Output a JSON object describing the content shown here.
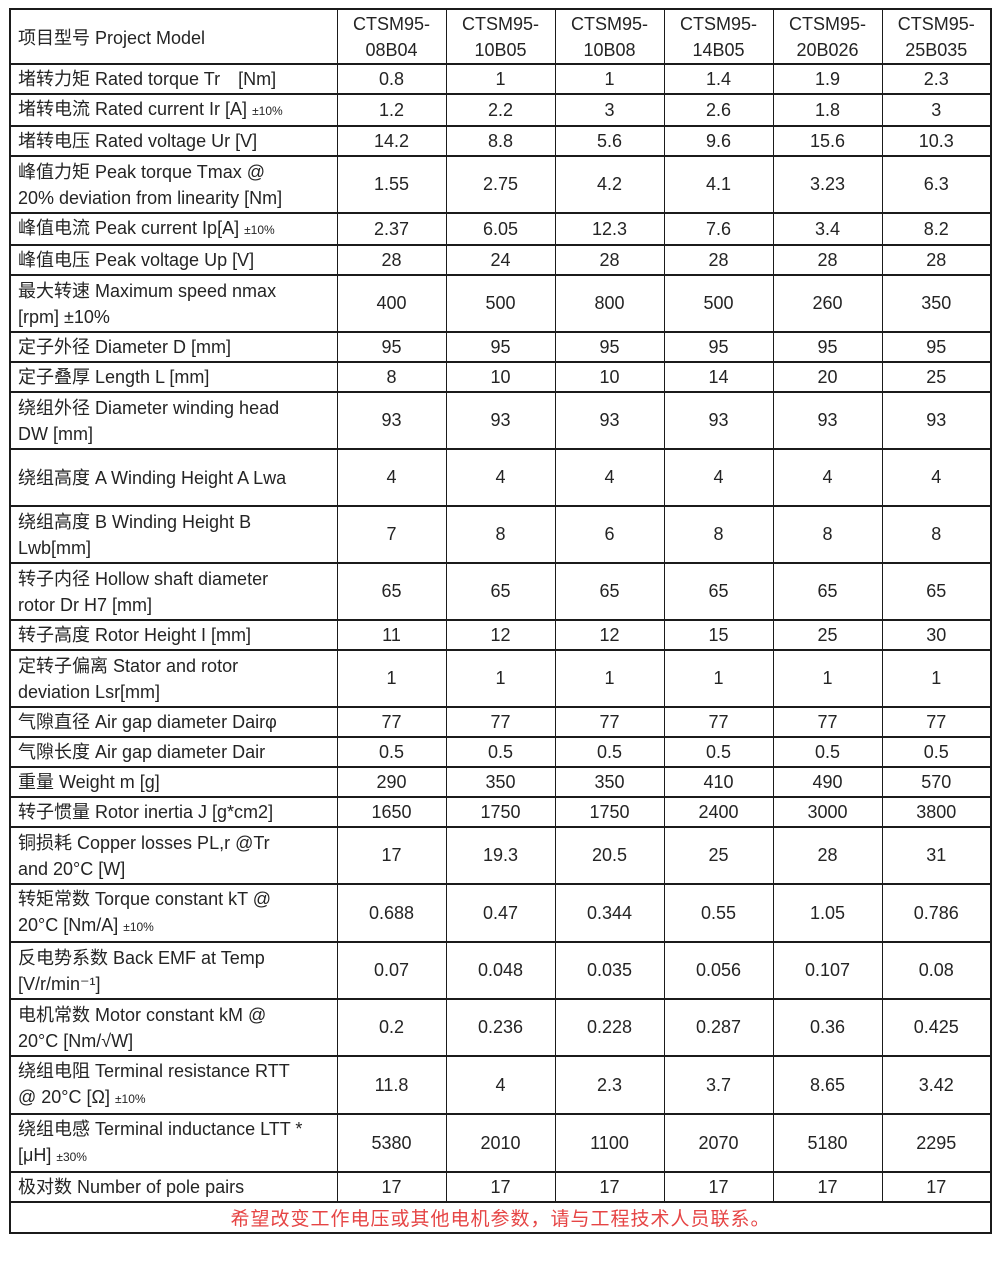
{
  "table": {
    "header": {
      "label": "项目型号 Project Model",
      "models": [
        "CTSM95-08B04",
        "CTSM95-10B05",
        "CTSM95-10B08",
        "CTSM95-14B05",
        "CTSM95-20B026",
        "CTSM95-25B035"
      ]
    },
    "rows": [
      {
        "label": "堵转力矩 Rated torque Tr　[Nm]",
        "note": "",
        "tall": false,
        "values": [
          "0.8",
          "1",
          "1",
          "1.4",
          "1.9",
          "2.3"
        ]
      },
      {
        "label": "堵转电流 Rated current Ir [A]",
        "note": "±10%",
        "tall": false,
        "values": [
          "1.2",
          "2.2",
          "3",
          "2.6",
          "1.8",
          "3"
        ]
      },
      {
        "label": "堵转电压 Rated voltage Ur [V]",
        "note": "",
        "tall": false,
        "values": [
          "14.2",
          "8.8",
          "5.6",
          "9.6",
          "15.6",
          "10.3"
        ]
      },
      {
        "label": "峰值力矩 Peak torque Tmax @ 20% deviation from linearity [Nm]",
        "note": "",
        "tall": true,
        "values": [
          "1.55",
          "2.75",
          "4.2",
          "4.1",
          "3.23",
          "6.3"
        ]
      },
      {
        "label": "峰值电流 Peak current Ip[A]",
        "note": "±10%",
        "tall": false,
        "values": [
          "2.37",
          "6.05",
          "12.3",
          "7.6",
          "3.4",
          "8.2"
        ]
      },
      {
        "label": "峰值电压 Peak voltage Up [V]",
        "note": "",
        "tall": false,
        "values": [
          "28",
          "24",
          "28",
          "28",
          "28",
          "28"
        ]
      },
      {
        "label": "最大转速  Maximum speed nmax [rpm] ±10%",
        "note": "",
        "tall": true,
        "values": [
          "400",
          "500",
          "800",
          "500",
          "260",
          "350"
        ]
      },
      {
        "label": "定子外径 Diameter D [mm]",
        "note": "",
        "tall": false,
        "values": [
          "95",
          "95",
          "95",
          "95",
          "95",
          "95"
        ]
      },
      {
        "label": "定子叠厚 Length L [mm]",
        "note": "",
        "tall": false,
        "values": [
          "8",
          "10",
          "10",
          "14",
          "20",
          "25"
        ]
      },
      {
        "label": "绕组外径 Diameter winding head DW [mm]",
        "note": "",
        "tall": true,
        "values": [
          "93",
          "93",
          "93",
          "93",
          "93",
          "93"
        ]
      },
      {
        "label": "绕组高度 A Winding Height A Lwa",
        "note": "",
        "tall": true,
        "values": [
          "4",
          "4",
          "4",
          "4",
          "4",
          "4"
        ]
      },
      {
        "label": "绕组高度 B Winding Height B Lwb[mm]",
        "note": "",
        "tall": true,
        "values": [
          "7",
          "8",
          "6",
          "8",
          "8",
          "8"
        ]
      },
      {
        "label": "转子内径 Hollow shaft diameter rotor Dr H7 [mm]",
        "note": "",
        "tall": true,
        "values": [
          "65",
          "65",
          "65",
          "65",
          "65",
          "65"
        ]
      },
      {
        "label": "转子高度 Rotor Height I [mm]",
        "note": "",
        "tall": false,
        "values": [
          "11",
          "12",
          "12",
          "15",
          "25",
          "30"
        ]
      },
      {
        "label": "定转子偏离 Stator and rotor deviation Lsr[mm]",
        "note": "",
        "tall": true,
        "values": [
          "1",
          "1",
          "1",
          "1",
          "1",
          "1"
        ]
      },
      {
        "label": "气隙直径  Air gap diameter Dairφ",
        "note": "",
        "tall": false,
        "values": [
          "77",
          "77",
          "77",
          "77",
          "77",
          "77"
        ]
      },
      {
        "label": "气隙长度  Air gap diameter Dair",
        "note": "",
        "tall": false,
        "values": [
          "0.5",
          "0.5",
          "0.5",
          "0.5",
          "0.5",
          "0.5"
        ]
      },
      {
        "label": "重量 Weight m [g]",
        "note": "",
        "tall": false,
        "values": [
          "290",
          "350",
          "350",
          "410",
          "490",
          "570"
        ]
      },
      {
        "label": "转子惯量 Rotor inertia J [g*cm2]",
        "note": "",
        "tall": false,
        "values": [
          "1650",
          "1750",
          "1750",
          "2400",
          "3000",
          "3800"
        ]
      },
      {
        "label": "铜损耗 Copper losses PL,r @Tr and 20°C [W]",
        "note": "",
        "tall": true,
        "values": [
          "17",
          "19.3",
          "20.5",
          "25",
          "28",
          "31"
        ]
      },
      {
        "label": "转矩常数 Torque constant kT @ 20°C [Nm/A]",
        "note": "±10%",
        "tall": true,
        "values": [
          "0.688",
          "0.47",
          "0.344",
          "0.55",
          "1.05",
          "0.786"
        ]
      },
      {
        "label": "反电势系数 Back EMF at Temp [V/r/min⁻¹]",
        "note": "",
        "tall": true,
        "values": [
          "0.07",
          "0.048",
          "0.035",
          "0.056",
          "0.107",
          "0.08"
        ]
      },
      {
        "label": "电机常数 Motor constant kM @ 20°C [Nm/√W]",
        "note": "",
        "tall": true,
        "values": [
          "0.2",
          "0.236",
          "0.228",
          "0.287",
          "0.36",
          "0.425"
        ]
      },
      {
        "label": "绕组电阻 Terminal resistance RTT @ 20°C [Ω]",
        "note": "±10%",
        "tall": true,
        "values": [
          "11.8",
          "4",
          "2.3",
          "3.7",
          "8.65",
          "3.42"
        ]
      },
      {
        "label": "绕组电感 Terminal inductance LTT * [μH]",
        "note": "±30%",
        "tall": true,
        "values": [
          "5380",
          "2010",
          "1100",
          "2070",
          "5180",
          "2295"
        ]
      },
      {
        "label": "极对数 Number of pole pairs",
        "note": "",
        "tall": false,
        "values": [
          "17",
          "17",
          "17",
          "17",
          "17",
          "17"
        ]
      }
    ],
    "footer_note": "希望改变工作电压或其他电机参数，请与工程技术人员联系。",
    "colors": {
      "border": "#1b1b1b",
      "text": "#242424",
      "footer_red": "#e64545"
    }
  }
}
